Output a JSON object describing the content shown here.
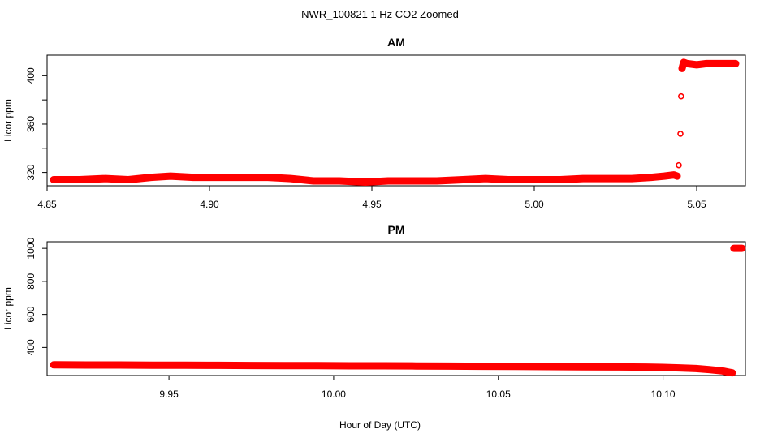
{
  "figure": {
    "title": "NWR_100821  1 Hz CO2 Zoomed",
    "xlabel": "Hour of Day (UTC)"
  },
  "chart_data": [
    {
      "type": "scatter",
      "title": "AM",
      "xlabel": "",
      "ylabel": "Licor ppm",
      "xlim": [
        4.85,
        5.065
      ],
      "ylim": [
        309,
        417
      ],
      "xticks": [
        4.85,
        4.9,
        4.95,
        5.0,
        5.05
      ],
      "xtick_labels": [
        "4.85",
        "4.90",
        "4.95",
        "5.00",
        "5.05"
      ],
      "yticks": [
        320,
        340,
        360,
        380,
        400
      ],
      "ytick_labels": [
        "320",
        "",
        "360",
        "",
        "400"
      ],
      "grid": false,
      "color": "#ff0000",
      "series": [
        {
          "x": [
            4.852,
            4.86,
            4.868,
            4.875,
            4.882,
            4.888,
            4.895,
            4.902,
            4.91,
            4.918,
            4.925,
            4.932,
            4.94,
            4.948,
            4.955,
            4.962,
            4.97,
            4.978,
            4.985,
            4.992,
            5.0,
            5.008,
            5.015,
            5.022,
            5.03,
            5.036,
            5.04,
            5.043,
            5.044,
            5.0445,
            5.045,
            5.0452,
            5.0455,
            5.046,
            5.047,
            5.05,
            5.053,
            5.056,
            5.059,
            5.062
          ],
          "values": [
            314,
            314,
            315,
            314,
            316,
            317,
            316,
            316,
            316,
            316,
            315,
            313,
            313,
            312,
            313,
            313,
            313,
            314,
            315,
            314,
            314,
            314,
            315,
            315,
            315,
            316,
            317,
            318,
            317,
            326,
            352,
            383,
            406,
            411,
            410,
            409,
            410,
            410,
            410,
            410
          ]
        }
      ]
    },
    {
      "type": "scatter",
      "title": "PM",
      "xlabel": "Hour of Day (UTC)",
      "ylabel": "Licor ppm",
      "xlim": [
        9.913,
        10.125
      ],
      "ylim": [
        230,
        1040
      ],
      "xticks": [
        9.95,
        10.0,
        10.05,
        10.1
      ],
      "xtick_labels": [
        "9.95",
        "10.00",
        "10.05",
        "10.10"
      ],
      "yticks": [
        400,
        600,
        800,
        1000
      ],
      "ytick_labels": [
        "400",
        "600",
        "800",
        "1000"
      ],
      "grid": false,
      "color": "#ff0000",
      "series": [
        {
          "x": [
            9.915,
            9.925,
            9.935,
            9.945,
            9.955,
            9.965,
            9.975,
            9.985,
            9.995,
            10.005,
            10.015,
            10.025,
            10.035,
            10.045,
            10.055,
            10.065,
            10.075,
            10.085,
            10.095,
            10.1,
            10.105,
            10.11,
            10.114,
            10.118,
            10.12,
            10.121,
            10.1215,
            10.122,
            10.123,
            10.124
          ],
          "values": [
            295,
            294,
            294,
            293,
            293,
            292,
            291,
            290,
            290,
            289,
            289,
            288,
            287,
            286,
            285,
            284,
            283,
            282,
            281,
            279,
            276,
            272,
            266,
            258,
            250,
            246,
            1000,
            1000,
            1000,
            1000
          ]
        }
      ]
    }
  ]
}
